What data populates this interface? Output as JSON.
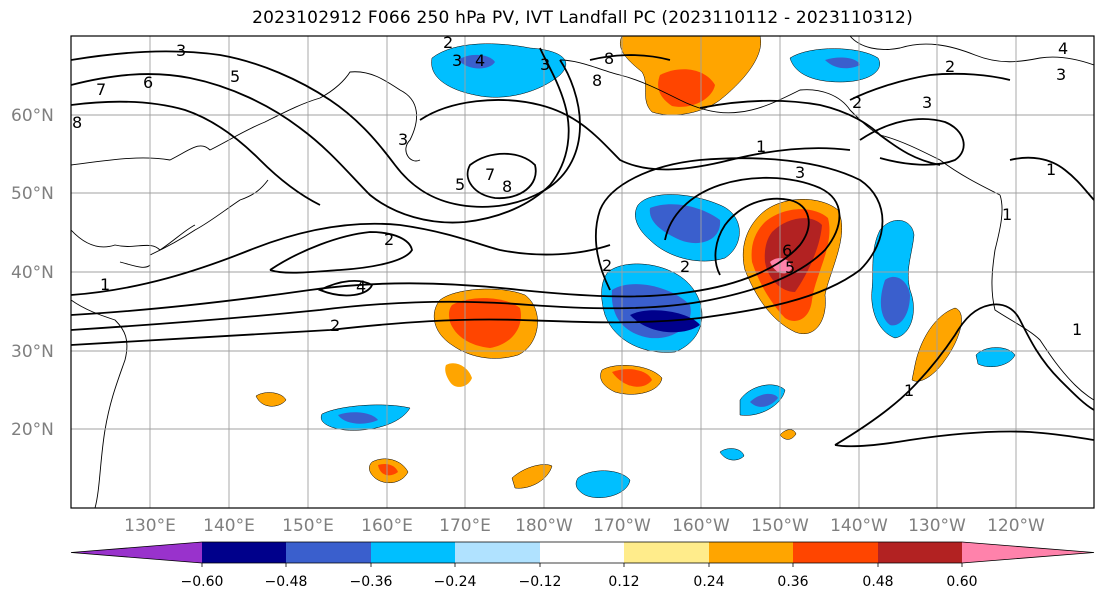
{
  "title": "2023102912 F066 250 hPa PV, IVT Landfall PC (2023110112 - 2023110312)",
  "lat_labels": [
    "60°N",
    "50°N",
    "40°N",
    "30°N",
    "20°N"
  ],
  "lon_labels": [
    "130°E",
    "140°E",
    "150°E",
    "160°E",
    "170°E",
    "180°W",
    "170°W",
    "160°W",
    "150°W",
    "140°W",
    "130°W",
    "120°W"
  ],
  "colorbar": {
    "ticks": [
      "−0.60",
      "−0.48",
      "−0.36",
      "−0.24",
      "−0.12",
      "0.12",
      "0.24",
      "0.36",
      "0.48",
      "0.60"
    ],
    "colors": [
      "#9932cc",
      "#00008b",
      "#3a5fcd",
      "#00bfff",
      "#b0e2ff",
      "#ffffff",
      "#ffec8b",
      "#ffa500",
      "#ff4500",
      "#b22222",
      "#ff82ab"
    ]
  },
  "contour_labels": [
    "3",
    "5",
    "7",
    "6",
    "8",
    "3",
    "4",
    "2",
    "3",
    "8",
    "8",
    "3",
    "5",
    "7",
    "8",
    "2",
    "4",
    "2",
    "2",
    "1",
    "3",
    "6",
    "5",
    "2",
    "2",
    "3",
    "1",
    "1",
    "1",
    "1",
    "2",
    "3",
    "4",
    "1"
  ]
}
